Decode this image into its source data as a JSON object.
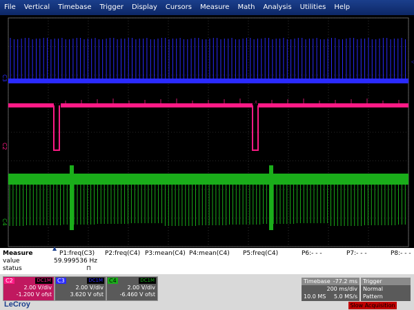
{
  "menu": [
    "File",
    "Vertical",
    "Timebase",
    "Trigger",
    "Display",
    "Cursors",
    "Measure",
    "Math",
    "Analysis",
    "Utilities",
    "Help"
  ],
  "colors": {
    "c2": "#ff1a86",
    "c3": "#2a2aff",
    "c4": "#1aad1a",
    "grid": "#555555"
  },
  "channel_labels": {
    "c3": "C3",
    "c2": "C2",
    "c4": "C4"
  },
  "measure": {
    "title": "Measure",
    "row_value": "value",
    "row_status": "status",
    "params": [
      "P1:freq(C3)",
      "P2:freq(C4)",
      "P3:mean(C4)",
      "P4:mean(C4)",
      "P5:freq(C4)",
      "P6:- - -",
      "P7:- - -",
      "P8:- - -"
    ],
    "p1_value": "59.999536 Hz",
    "p1_status": "⊓"
  },
  "channels": [
    {
      "tag": "C2",
      "coupling": "DC1M",
      "vdiv": "2.00 V/div",
      "offset": "-1.200 V ofst",
      "color": "#ff1a86"
    },
    {
      "tag": "C3",
      "coupling": "DC1M",
      "vdiv": "2.00 V/div",
      "offset": "3.620 V ofst",
      "color": "#2a2aff"
    },
    {
      "tag": "C4",
      "coupling": "DC1M",
      "vdiv": "2.00 V/div",
      "offset": "-6.460 V ofst",
      "color": "#1aad1a"
    }
  ],
  "timebase": {
    "label": "Timebase",
    "delay": "-77.2 ms",
    "tdiv": "200 ms/div",
    "samples": "10.0 MS",
    "rate": "5.0 MS/s"
  },
  "trigger": {
    "label": "Trigger",
    "mode": "Normal",
    "type": "Pattern"
  },
  "brand": "LeCroy",
  "acq_status": "Slow Acquisition"
}
